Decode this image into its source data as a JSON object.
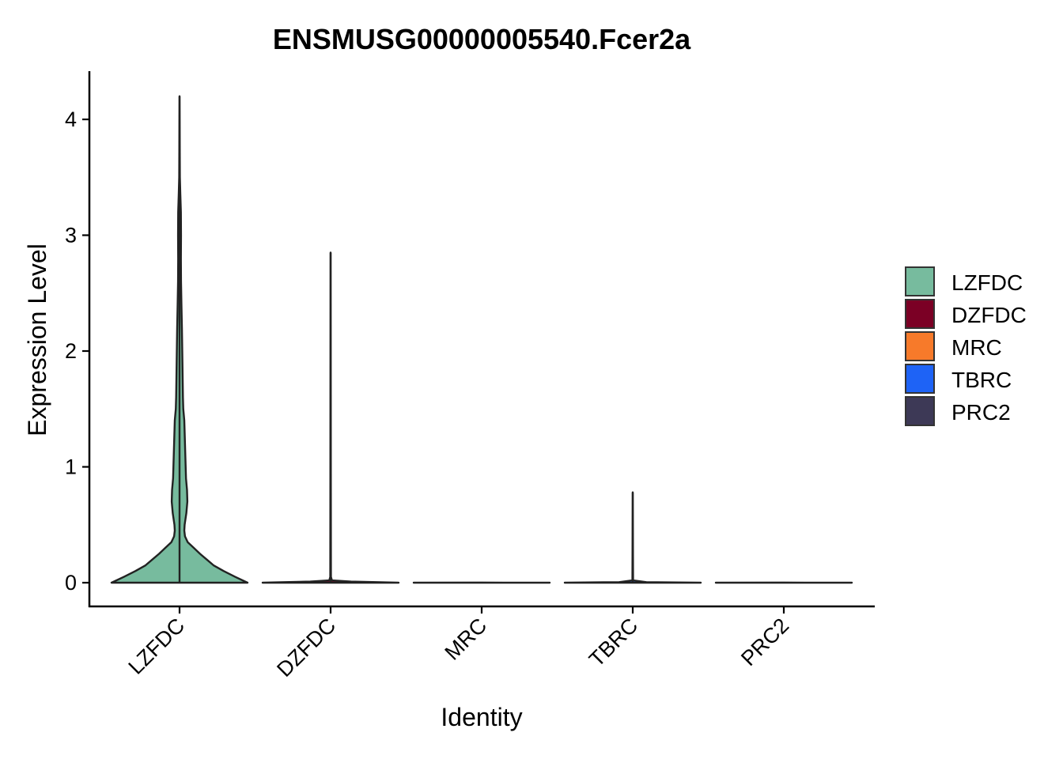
{
  "chart_data": {
    "type": "violin",
    "title": "ENSMUSG00000005540.Fcer2a",
    "xlabel": "Identity",
    "ylabel": "Expression Level",
    "categories": [
      "LZFDC",
      "DZFDC",
      "MRC",
      "TBRC",
      "PRC2"
    ],
    "ylim": [
      -0.2,
      4.4
    ],
    "yticks": [
      0,
      1,
      2,
      3,
      4
    ],
    "legend_position": "right",
    "grid": false,
    "series": [
      {
        "name": "LZFDC",
        "color": "#77BB9E",
        "max": 4.2,
        "density": [
          [
            0,
            1.0
          ],
          [
            0.05,
            0.82
          ],
          [
            0.1,
            0.65
          ],
          [
            0.15,
            0.5
          ],
          [
            0.2,
            0.4
          ],
          [
            0.25,
            0.3
          ],
          [
            0.3,
            0.21
          ],
          [
            0.35,
            0.12
          ],
          [
            0.4,
            0.08
          ],
          [
            0.45,
            0.07
          ],
          [
            0.5,
            0.075
          ],
          [
            0.6,
            0.1
          ],
          [
            0.7,
            0.115
          ],
          [
            0.8,
            0.11
          ],
          [
            0.9,
            0.095
          ],
          [
            1.0,
            0.09
          ],
          [
            1.2,
            0.08
          ],
          [
            1.4,
            0.07
          ],
          [
            1.5,
            0.055
          ],
          [
            1.6,
            0.05
          ],
          [
            1.8,
            0.045
          ],
          [
            2.0,
            0.04
          ],
          [
            2.2,
            0.035
          ],
          [
            2.4,
            0.028
          ],
          [
            2.6,
            0.022
          ],
          [
            2.8,
            0.02
          ],
          [
            3.0,
            0.022
          ],
          [
            3.2,
            0.02
          ],
          [
            3.35,
            0.012
          ],
          [
            3.5,
            0.005
          ],
          [
            3.8,
            0.003
          ],
          [
            4.2,
            0.0
          ]
        ]
      },
      {
        "name": "DZFDC",
        "color": "#7B0025",
        "max": 2.85,
        "density": [
          [
            0,
            1.0
          ],
          [
            0.01,
            0.3
          ],
          [
            0.02,
            0.02
          ],
          [
            0.05,
            0.005
          ],
          [
            2.85,
            0.0
          ]
        ]
      },
      {
        "name": "MRC",
        "color": "#F77A2A",
        "max": 0,
        "density": [
          [
            0,
            1.0
          ],
          [
            0.001,
            0.0
          ]
        ]
      },
      {
        "name": "TBRC",
        "color": "#1E63F6",
        "max": 0.78,
        "density": [
          [
            0,
            1.0
          ],
          [
            0.005,
            0.2
          ],
          [
            0.02,
            0.005
          ],
          [
            0.78,
            0.0
          ]
        ]
      },
      {
        "name": "PRC2",
        "color": "#3D3956",
        "max": 0,
        "density": [
          [
            0,
            1.0
          ],
          [
            0.001,
            0.0
          ]
        ]
      }
    ]
  }
}
